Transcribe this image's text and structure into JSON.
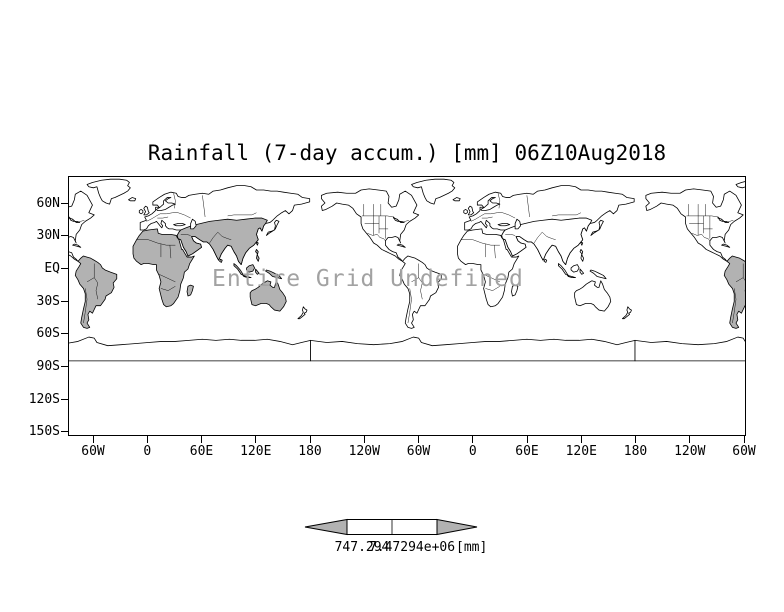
{
  "title": "Rainfall (7-day accum.) [mm] 06Z10Aug2018",
  "watermark": "Entire Grid Undefined",
  "watermark_color": "#a2a2a2",
  "axes": {
    "y_ticks": [
      "60N",
      "30N",
      "EQ",
      "30S",
      "60S",
      "90S",
      "120S",
      "150S"
    ],
    "x_ticks": [
      "60W",
      "0",
      "60E",
      "120E",
      "180",
      "120W",
      "60W",
      "0",
      "60E",
      "120E",
      "180",
      "120W",
      "60W"
    ]
  },
  "map": {
    "land_fill_highlight": "#b2b2b2",
    "land_fill_default": "#ffffff",
    "outline_color": "#000000"
  },
  "colorbar": {
    "labels": [
      "747.294",
      "7.47294e+06"
    ],
    "units": "[mm]",
    "arrow_color": "#b2b2b2",
    "cell_color": "#ffffff"
  },
  "chart_data": {
    "type": "heatmap",
    "title": "Rainfall (7-day accum.) [mm] 06Z10Aug2018",
    "x_ticks": [
      "60W",
      "0",
      "60E",
      "120E",
      "180",
      "120W",
      "60W",
      "0",
      "60E",
      "120E",
      "180",
      "120W",
      "60W"
    ],
    "y_ticks": [
      "60N",
      "30N",
      "EQ",
      "30S",
      "60S",
      "90S",
      "120S",
      "150S"
    ],
    "values": [],
    "annotations": [
      "Entire Grid Undefined"
    ],
    "colorbar": {
      "ticks": [
        "747.294",
        "7.47294e+06"
      ],
      "units": "[mm]"
    },
    "legend_position": "bottom",
    "grid": false
  }
}
